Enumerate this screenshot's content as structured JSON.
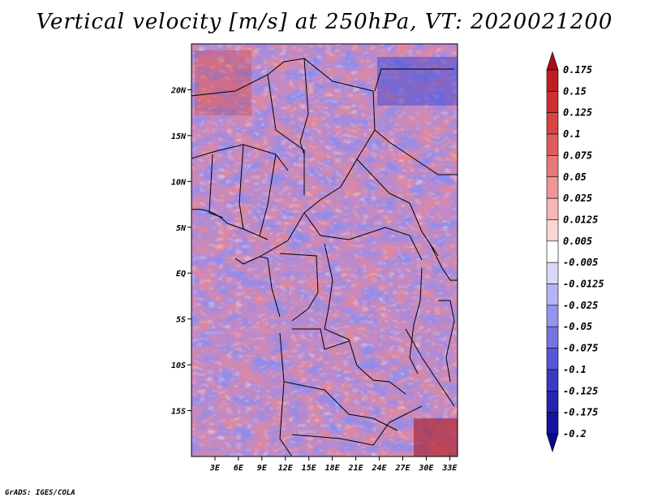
{
  "title": "Vertical velocity [m/s] at 250hPa, VT: 2020021200",
  "credit": "GrADS: IGES/COLA",
  "map": {
    "lat_range": [
      -20,
      25
    ],
    "lon_range": [
      0,
      34
    ],
    "lat_ticks": [
      {
        "value": 20,
        "label": "20N"
      },
      {
        "value": 15,
        "label": "15N"
      },
      {
        "value": 10,
        "label": "10N"
      },
      {
        "value": 5,
        "label": "5N"
      },
      {
        "value": 0,
        "label": "EQ"
      },
      {
        "value": -5,
        "label": "5S"
      },
      {
        "value": -10,
        "label": "10S"
      },
      {
        "value": -15,
        "label": "15S"
      }
    ],
    "lon_ticks": [
      {
        "value": 3,
        "label": "3E"
      },
      {
        "value": 6,
        "label": "6E"
      },
      {
        "value": 9,
        "label": "9E"
      },
      {
        "value": 12,
        "label": "12E"
      },
      {
        "value": 15,
        "label": "15E"
      },
      {
        "value": 18,
        "label": "18E"
      },
      {
        "value": 21,
        "label": "21E"
      },
      {
        "value": 24,
        "label": "24E"
      },
      {
        "value": 27,
        "label": "27E"
      },
      {
        "value": 30,
        "label": "30E"
      },
      {
        "value": 33,
        "label": "33E"
      }
    ]
  },
  "colorbar": {
    "labels": [
      "0.175",
      "0.15",
      "0.125",
      "0.1",
      "0.075",
      "0.05",
      "0.025",
      "0.0125",
      "0.005",
      "-0.005",
      "-0.0125",
      "-0.025",
      "-0.05",
      "-0.075",
      "-0.1",
      "-0.125",
      "-0.175",
      "-0.2"
    ],
    "colors": [
      "#a50f15",
      "#bd1d24",
      "#cc2f2f",
      "#d84343",
      "#e05c5c",
      "#e87878",
      "#f09595",
      "#f5b6b6",
      "#fad6d6",
      "#ffffff",
      "#d8d8fa",
      "#b4b4f5",
      "#9494ee",
      "#7474e4",
      "#5656d6",
      "#3a3ac4",
      "#2424b0",
      "#14149c",
      "#0a0a8a"
    ]
  }
}
